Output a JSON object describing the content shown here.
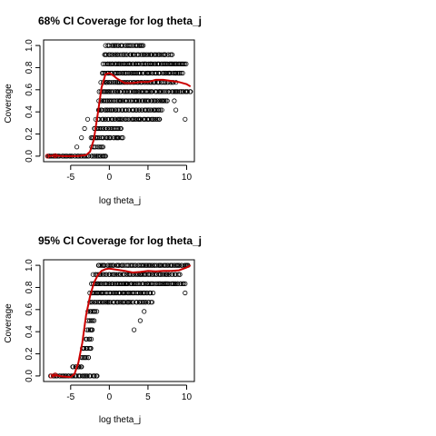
{
  "chart_data": [
    {
      "type": "scatter",
      "title": "68% CI Coverage for log theta_j",
      "xlabel": "log theta_j",
      "ylabel": "Coverage",
      "xlim": [
        -8.5,
        11
      ],
      "ylim": [
        -0.05,
        1.05
      ],
      "xticks": [
        "-5",
        "0",
        "5",
        "10"
      ],
      "yticks": [
        "0.0",
        "0.2",
        "0.4",
        "0.6",
        "0.8",
        "1.0"
      ],
      "grid": false,
      "point_style": "open-circle",
      "smooth_color": "#cc0000",
      "points": [
        {
          "y": 0.0,
          "xmin": -8.0,
          "xmax": -0.4
        },
        {
          "y": 0.083,
          "xmin": -2.2,
          "xmax": -0.9
        },
        {
          "y": 0.167,
          "xmin": -2.4,
          "xmax": 1.8
        },
        {
          "y": 0.25,
          "xmin": -2.0,
          "xmax": 1.6
        },
        {
          "y": 0.333,
          "xmin": -1.7,
          "xmax": 6.5
        },
        {
          "y": 0.417,
          "xmin": -1.5,
          "xmax": 6.8
        },
        {
          "y": 0.5,
          "xmin": -1.3,
          "xmax": 7.5
        },
        {
          "y": 0.583,
          "xmin": -1.2,
          "xmax": 10.5
        },
        {
          "y": 0.667,
          "xmin": -1.0,
          "xmax": 8.5
        },
        {
          "y": 0.75,
          "xmin": -0.9,
          "xmax": 9.5
        },
        {
          "y": 0.833,
          "xmin": -0.7,
          "xmax": 10.0
        },
        {
          "y": 0.917,
          "xmin": -0.6,
          "xmax": 8.2
        },
        {
          "y": 1.0,
          "xmin": -0.4,
          "xmax": 4.5
        }
      ],
      "outliers": [
        {
          "x": -4.2,
          "y": 0.083
        },
        {
          "x": -3.6,
          "y": 0.167
        },
        {
          "x": -3.2,
          "y": 0.25
        },
        {
          "x": -2.8,
          "y": 0.333
        },
        {
          "x": 9.8,
          "y": 0.333
        },
        {
          "x": 8.6,
          "y": 0.417
        },
        {
          "x": 8.4,
          "y": 0.5
        }
      ],
      "smooth": {
        "x": [
          -8,
          -7,
          -6,
          -5,
          -4,
          -3,
          -2.5,
          -2,
          -1.5,
          -1,
          -0.5,
          0,
          0.5,
          1,
          2,
          3,
          4,
          5,
          6,
          7,
          8,
          9,
          10,
          10.5
        ],
        "y": [
          0.0,
          0.005,
          0.0,
          0.0,
          0.002,
          0.01,
          0.04,
          0.15,
          0.38,
          0.62,
          0.74,
          0.75,
          0.73,
          0.7,
          0.66,
          0.66,
          0.67,
          0.67,
          0.69,
          0.69,
          0.68,
          0.67,
          0.65,
          0.63
        ]
      }
    },
    {
      "type": "scatter",
      "title": "95% CI Coverage for  log theta_j",
      "xlabel": "log theta_j",
      "ylabel": "Coverage",
      "xlim": [
        -8.5,
        11
      ],
      "ylim": [
        -0.05,
        1.05
      ],
      "xticks": [
        "-5",
        "0",
        "5",
        "10"
      ],
      "yticks": [
        "0.0",
        "0.2",
        "0.4",
        "0.6",
        "0.8",
        "1.0"
      ],
      "grid": false,
      "point_style": "open-circle",
      "smooth_color": "#cc0000",
      "points": [
        {
          "y": 0.0,
          "xmin": -7.5,
          "xmax": -1.5
        },
        {
          "y": 0.083,
          "xmin": -4.8,
          "xmax": -3.5
        },
        {
          "y": 0.167,
          "xmin": -3.6,
          "xmax": -2.6
        },
        {
          "y": 0.25,
          "xmin": -3.5,
          "xmax": -2.3
        },
        {
          "y": 0.333,
          "xmin": -3.0,
          "xmax": -2.4
        },
        {
          "y": 0.417,
          "xmin": -2.9,
          "xmax": -2.2
        },
        {
          "y": 0.5,
          "xmin": -2.8,
          "xmax": -2.0
        },
        {
          "y": 0.583,
          "xmin": -2.7,
          "xmax": -1.6
        },
        {
          "y": 0.667,
          "xmin": -2.6,
          "xmax": 5.5
        },
        {
          "y": 0.75,
          "xmin": -2.5,
          "xmax": 5.6
        },
        {
          "y": 0.833,
          "xmin": -2.3,
          "xmax": 9.8
        },
        {
          "y": 0.917,
          "xmin": -2.0,
          "xmax": 9.2
        },
        {
          "y": 1.0,
          "xmin": -1.5,
          "xmax": 10.3
        }
      ],
      "outliers": [
        {
          "x": -3.9,
          "y": 0.083
        },
        {
          "x": 4.0,
          "y": 0.5
        },
        {
          "x": 3.2,
          "y": 0.417
        },
        {
          "x": 9.8,
          "y": 0.75
        },
        {
          "x": 4.5,
          "y": 0.583
        },
        {
          "x": -2.2,
          "y": 0.417
        }
      ],
      "smooth": {
        "x": [
          -7.5,
          -7,
          -6.5,
          -6,
          -5,
          -4.5,
          -4,
          -3.5,
          -3,
          -2.5,
          -2,
          -1.5,
          -1,
          -0.5,
          0,
          1,
          2,
          3,
          4,
          5,
          6,
          7,
          8,
          9,
          10,
          10.5
        ],
        "y": [
          0.0,
          0.01,
          0.0,
          -0.005,
          -0.01,
          0.02,
          0.12,
          0.3,
          0.55,
          0.72,
          0.84,
          0.91,
          0.95,
          0.965,
          0.97,
          0.96,
          0.95,
          0.935,
          0.94,
          0.95,
          0.945,
          0.95,
          0.95,
          0.955,
          0.98,
          1.0
        ]
      }
    }
  ]
}
